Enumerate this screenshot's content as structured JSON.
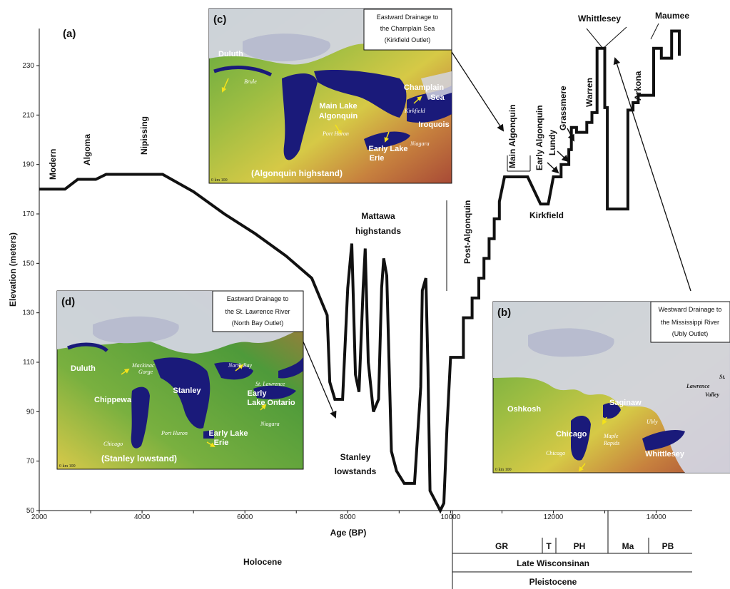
{
  "panel_a_label": "(a)",
  "chart_data": {
    "type": "line",
    "xlabel": "Age (BP)",
    "ylabel": "Elevation (meters)",
    "xlim": [
      2000,
      14700
    ],
    "ylim": [
      50,
      245
    ],
    "x_ticks": [
      2000,
      4000,
      6000,
      8000,
      10000,
      12000,
      14000
    ],
    "y_ticks": [
      50,
      70,
      90,
      110,
      130,
      150,
      170,
      190,
      210,
      230
    ],
    "series": [
      {
        "values": [
          [
            2000,
            180
          ],
          [
            2500,
            180
          ],
          [
            2750,
            184
          ],
          [
            3100,
            184
          ],
          [
            3300,
            186
          ],
          [
            4400,
            186
          ],
          [
            5000,
            179
          ],
          [
            5600,
            170
          ],
          [
            6200,
            162
          ],
          [
            6800,
            153
          ],
          [
            7300,
            144
          ],
          [
            7600,
            129
          ],
          [
            7650,
            102
          ],
          [
            7750,
            95
          ],
          [
            7900,
            95
          ],
          [
            8000,
            140
          ],
          [
            8080,
            158
          ],
          [
            8150,
            105
          ],
          [
            8220,
            98
          ],
          [
            8300,
            140
          ],
          [
            8340,
            156
          ],
          [
            8400,
            110
          ],
          [
            8500,
            90
          ],
          [
            8600,
            95
          ],
          [
            8660,
            140
          ],
          [
            8700,
            152
          ],
          [
            8760,
            145
          ],
          [
            8850,
            74
          ],
          [
            8950,
            66
          ],
          [
            9100,
            61
          ],
          [
            9300,
            61
          ],
          [
            9420,
            100
          ],
          [
            9450,
            139
          ],
          [
            9520,
            144
          ],
          [
            9560,
            108
          ],
          [
            9600,
            58
          ],
          [
            9700,
            54
          ],
          [
            9800,
            50
          ],
          [
            9870,
            53
          ],
          [
            9930,
            83
          ],
          [
            10000,
            112
          ],
          [
            10250,
            112
          ],
          [
            10250,
            128
          ],
          [
            10420,
            128
          ],
          [
            10420,
            136
          ],
          [
            10550,
            136
          ],
          [
            10550,
            144
          ],
          [
            10650,
            144
          ],
          [
            10650,
            152
          ],
          [
            10750,
            152
          ],
          [
            10750,
            160
          ],
          [
            10850,
            160
          ],
          [
            10850,
            168
          ],
          [
            10950,
            168
          ],
          [
            10950,
            175
          ],
          [
            11050,
            185
          ],
          [
            11500,
            185
          ],
          [
            11750,
            174
          ],
          [
            11900,
            174
          ],
          [
            12000,
            185
          ],
          [
            12150,
            185
          ],
          [
            12150,
            190
          ],
          [
            12300,
            190
          ],
          [
            12300,
            196
          ],
          [
            12350,
            196
          ],
          [
            12350,
            205
          ],
          [
            12450,
            205
          ],
          [
            12450,
            203
          ],
          [
            12650,
            203
          ],
          [
            12650,
            207
          ],
          [
            12750,
            207
          ],
          [
            12750,
            211
          ],
          [
            12850,
            211
          ],
          [
            12850,
            237
          ],
          [
            13000,
            237
          ],
          [
            13000,
            213
          ],
          [
            13050,
            213
          ],
          [
            13050,
            172
          ],
          [
            13450,
            172
          ],
          [
            13450,
            212
          ],
          [
            13550,
            212
          ],
          [
            13550,
            215
          ],
          [
            13650,
            215
          ],
          [
            13650,
            218
          ],
          [
            13950,
            218
          ],
          [
            13950,
            237
          ],
          [
            14100,
            237
          ],
          [
            14100,
            233
          ],
          [
            14300,
            233
          ],
          [
            14300,
            244
          ],
          [
            14450,
            244
          ],
          [
            14450,
            234
          ]
        ]
      }
    ],
    "annotations": [
      "Modern",
      "Algoma",
      "Nipissing",
      "Mattawa",
      "highstands",
      "Stanley",
      "lowstands",
      "Post-Algonquin",
      "Main Algonquin",
      "Early Algonquin",
      "Lundy",
      "Grassmere",
      "Kirkfield",
      "Warren",
      "Whittlesey",
      "Arkona",
      "Maumee"
    ]
  },
  "strat": {
    "holocene": "Holocene",
    "pleistocene": "Pleistocene",
    "late_wisconsinan": "Late Wisconsinan",
    "substages": [
      "GR",
      "T",
      "PH",
      "Ma",
      "PB"
    ]
  },
  "maps": {
    "c": {
      "letter": "(c)",
      "box": [
        "Eastward Drainage to",
        "the Champlain Sea",
        "(Kirkfield Outlet)"
      ],
      "stand": "(Algonquin highstand)",
      "names": [
        "Duluth",
        "Main Lake",
        "Algonquin",
        "Champlain",
        "Sea",
        "Iroquois",
        "Early Lake",
        "Erie"
      ],
      "italic": [
        "Brule",
        "Port Huron",
        "Kirkfield",
        "Niagara"
      ],
      "scale": "0  km 100"
    },
    "d": {
      "letter": "(d)",
      "box": [
        "Eastward Drainage to",
        "the St. Lawrence River",
        "(North Bay Outlet)"
      ],
      "stand": "(Stanley lowstand)",
      "names": [
        "Duluth",
        "Chippewa",
        "Stanley",
        "Early",
        "Lake Ontario",
        "Early Lake",
        "Erie"
      ],
      "italic": [
        "Mackinac",
        "Gorge",
        "North Bay",
        "St. Lawrence",
        "Port Huron",
        "Chicago",
        "Niagara"
      ],
      "scale": "0  km 100"
    },
    "b": {
      "letter": "(b)",
      "box": [
        "Westward Drainage to",
        "the Mississippi River",
        "(Ubly Outlet)"
      ],
      "names": [
        "Oshkosh",
        "Saginaw",
        "Chicago",
        "Whittlesey"
      ],
      "italic": [
        "Maple",
        "Rapids",
        "Ubly",
        "Chicago",
        "St.",
        "Lawrence",
        "Valley"
      ],
      "scale": "0  km 100"
    }
  },
  "colors": {
    "line": "#111111",
    "water": "#1a1a7a",
    "ice": "#c9ccd9",
    "land_green": "#4f9c3a",
    "land_yellow": "#c9c540",
    "land_red": "#b55a3c"
  }
}
